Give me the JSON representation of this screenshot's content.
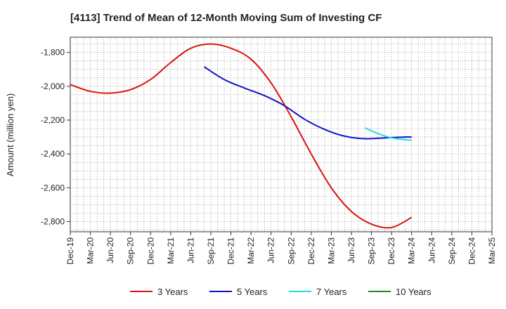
{
  "chart_data": {
    "type": "line",
    "title": "[4113]  Trend of Mean of 12-Month Moving Sum of Investing CF",
    "xlabel": "",
    "ylabel": "Amount (million yen)",
    "ylim": [
      -2860,
      -1710
    ],
    "yticks": [
      -1800,
      -2000,
      -2200,
      -2400,
      -2600,
      -2800
    ],
    "ytick_labels": [
      "-1,800",
      "-2,000",
      "-2,200",
      "-2,400",
      "-2,600",
      "-2,800"
    ],
    "x_range": [
      0,
      63
    ],
    "xticks": [
      0,
      3,
      6,
      9,
      12,
      15,
      18,
      21,
      24,
      27,
      30,
      33,
      36,
      39,
      42,
      45,
      48,
      51,
      54,
      57,
      60,
      63
    ],
    "xtick_labels": [
      "Dec-19",
      "Mar-20",
      "Jun-20",
      "Sep-20",
      "Dec-20",
      "Mar-21",
      "Jun-21",
      "Sep-21",
      "Dec-21",
      "Mar-22",
      "Jun-22",
      "Sep-22",
      "Dec-22",
      "Mar-23",
      "Jun-23",
      "Sep-23",
      "Dec-23",
      "Mar-24",
      "Jun-24",
      "Sep-24",
      "Dec-24",
      "Mar-25"
    ],
    "grid": true,
    "legend_position": "bottom",
    "series": [
      {
        "name": "3 Years",
        "color": "#dd1111",
        "x": [
          0,
          3,
          6,
          9,
          12,
          15,
          18,
          21,
          24,
          27,
          30,
          33,
          36,
          39,
          42,
          45,
          48,
          51
        ],
        "values": [
          -1990,
          -2030,
          -2040,
          -2020,
          -1960,
          -1860,
          -1775,
          -1750,
          -1775,
          -1840,
          -1980,
          -2180,
          -2400,
          -2600,
          -2740,
          -2815,
          -2835,
          -2775
        ]
      },
      {
        "name": "5 Years",
        "color": "#1111cc",
        "x": [
          20,
          23,
          26,
          29,
          32,
          35,
          38,
          41,
          44,
          47,
          50,
          51
        ],
        "values": [
          -1885,
          -1960,
          -2010,
          -2055,
          -2115,
          -2195,
          -2255,
          -2295,
          -2310,
          -2305,
          -2300,
          -2300
        ]
      },
      {
        "name": "7 Years",
        "color": "#22dddd",
        "x": [
          44,
          46,
          48,
          50,
          51
        ],
        "values": [
          -2245,
          -2280,
          -2305,
          -2315,
          -2318
        ]
      },
      {
        "name": "10 Years",
        "color": "#228822",
        "x": [],
        "values": []
      }
    ]
  }
}
